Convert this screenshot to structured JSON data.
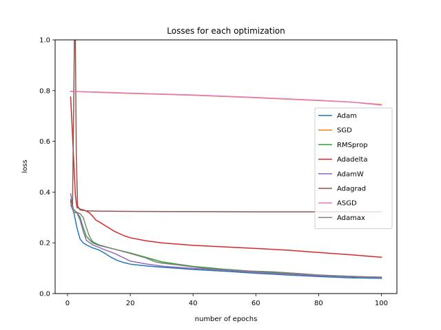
{
  "chart_data": {
    "type": "line",
    "title": "Losses for each optimization",
    "xlabel": "number of epochs",
    "ylabel": "loss",
    "xlim": [
      -3.95,
      104.95
    ],
    "ylim": [
      0.0,
      1.0
    ],
    "xticks": [
      0,
      20,
      40,
      60,
      80,
      100
    ],
    "yticks": [
      0.0,
      0.2,
      0.4,
      0.6,
      0.8,
      1.0
    ],
    "xtick_labels": [
      "0",
      "20",
      "40",
      "60",
      "80",
      "100"
    ],
    "ytick_labels": [
      "0.0",
      "0.2",
      "0.4",
      "0.6",
      "0.8",
      "1.0"
    ],
    "grid": false,
    "legend_position": "center-right",
    "series": [
      {
        "name": "Adam",
        "color": "#1f77b4",
        "x": [
          1,
          2,
          3,
          4,
          5,
          6,
          8,
          10,
          12,
          14,
          16,
          18,
          20,
          25,
          30,
          40,
          50,
          60,
          70,
          80,
          90,
          100
        ],
        "y": [
          0.37,
          0.32,
          0.26,
          0.215,
          0.2,
          0.192,
          0.18,
          0.172,
          0.158,
          0.142,
          0.13,
          0.122,
          0.116,
          0.109,
          0.104,
          0.095,
          0.088,
          0.08,
          0.073,
          0.067,
          0.062,
          0.06
        ]
      },
      {
        "name": "SGD",
        "color": "#ff7f0e",
        "x": [
          1,
          10,
          20,
          40,
          60,
          80,
          90,
          100
        ],
        "y": [
          0.797,
          0.793,
          0.789,
          0.782,
          0.772,
          0.761,
          0.755,
          0.745
        ]
      },
      {
        "name": "RMSprop",
        "color": "#2ca02c",
        "x": [
          1,
          2,
          3,
          4,
          5,
          6,
          8,
          10,
          15,
          20,
          30,
          40,
          50,
          60,
          70,
          80,
          90,
          100
        ],
        "y": [
          0.365,
          0.33,
          0.32,
          0.3,
          0.26,
          0.225,
          0.2,
          0.19,
          0.175,
          0.16,
          0.125,
          0.107,
          0.096,
          0.087,
          0.08,
          0.073,
          0.068,
          0.064
        ]
      },
      {
        "name": "Adadelta",
        "color": "#d62728",
        "x": [
          1,
          2,
          2.5,
          3,
          4,
          5,
          6,
          7,
          8,
          9,
          10,
          12,
          15,
          18,
          20,
          25,
          30,
          40,
          50,
          60,
          70,
          80,
          90,
          100
        ],
        "y": [
          0.775,
          0.52,
          0.39,
          0.34,
          0.333,
          0.33,
          0.325,
          0.318,
          0.305,
          0.29,
          0.283,
          0.268,
          0.245,
          0.228,
          0.22,
          0.208,
          0.2,
          0.19,
          0.184,
          0.178,
          0.171,
          0.162,
          0.153,
          0.143
        ]
      },
      {
        "name": "AdamW",
        "color": "#9467bd",
        "x": [
          1,
          2,
          3,
          4,
          5,
          6,
          8,
          10,
          12,
          15,
          18,
          20,
          25,
          30,
          40,
          50,
          60,
          70,
          80,
          90,
          100
        ],
        "y": [
          0.393,
          0.32,
          0.318,
          0.29,
          0.245,
          0.21,
          0.192,
          0.182,
          0.172,
          0.158,
          0.14,
          0.128,
          0.117,
          0.108,
          0.099,
          0.092,
          0.083,
          0.076,
          0.07,
          0.066,
          0.063
        ]
      },
      {
        "name": "Adagrad",
        "color": "#8c564b",
        "x": [
          1,
          1.6,
          2.2,
          2.5,
          2.8,
          3.2,
          4,
          5,
          6,
          10,
          20,
          40,
          60,
          80,
          100
        ],
        "y": [
          0.36,
          0.35,
          1.0,
          1.0,
          0.55,
          0.345,
          0.33,
          0.328,
          0.326,
          0.325,
          0.324,
          0.323,
          0.322,
          0.322,
          0.322
        ]
      },
      {
        "name": "ASGD",
        "color": "#e377c2",
        "x": [
          1,
          10,
          20,
          40,
          60,
          80,
          90,
          100
        ],
        "y": [
          0.797,
          0.794,
          0.79,
          0.783,
          0.773,
          0.762,
          0.755,
          0.743
        ]
      },
      {
        "name": "Adamax",
        "color": "#7f7f7f",
        "x": [
          1,
          2,
          3,
          4,
          5,
          6,
          7,
          8,
          10,
          12,
          15,
          18,
          20,
          25,
          28,
          30,
          35,
          40,
          45,
          50,
          55,
          60,
          65,
          70,
          75,
          80,
          85,
          90,
          95,
          100
        ],
        "y": [
          0.35,
          0.32,
          0.32,
          0.315,
          0.3,
          0.26,
          0.225,
          0.205,
          0.192,
          0.185,
          0.175,
          0.165,
          0.158,
          0.14,
          0.125,
          0.12,
          0.113,
          0.105,
          0.098,
          0.095,
          0.09,
          0.088,
          0.086,
          0.082,
          0.078,
          0.073,
          0.07,
          0.068,
          0.066,
          0.065
        ]
      }
    ]
  }
}
